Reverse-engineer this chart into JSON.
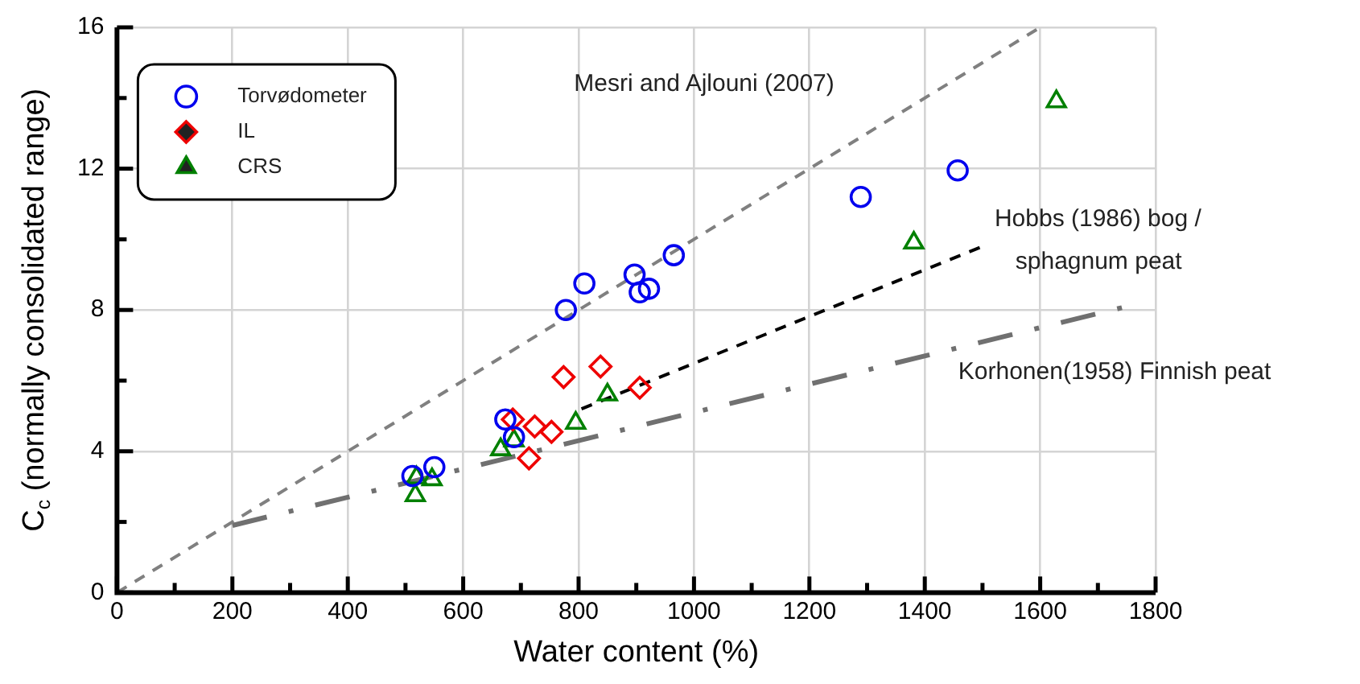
{
  "chart_data": {
    "type": "scatter",
    "xlabel": "Water content (%)",
    "ylabel": "C$_{c}$ (normally consolidated range)",
    "xlim": [
      0,
      1800
    ],
    "xticks": [
      0,
      {
        "value": 100,
        "label": null
      },
      200,
      {
        "value": 300,
        "label": null
      },
      400,
      {
        "value": 500,
        "label": null
      },
      600,
      {
        "value": 700,
        "label": null
      },
      800,
      {
        "value": 900,
        "label": null
      },
      1000,
      {
        "value": 1100,
        "label": null
      },
      1200,
      {
        "value": 1300,
        "label": null
      },
      1400,
      {
        "value": 1500,
        "label": null
      },
      1600,
      {
        "value": 1700,
        "label": null
      },
      1800
    ],
    "ylim": [
      0,
      16
    ],
    "yticks": [
      0,
      {
        "value": 2,
        "label": null
      },
      4,
      {
        "value": 6,
        "label": null
      },
      8,
      {
        "value": 10,
        "label": null
      },
      12,
      {
        "value": 14,
        "label": null
      },
      16
    ],
    "grid": true,
    "legend": "top left",
    "series": [
      {
        "name": "Torvødometer",
        "color": "#0000ee",
        "marker": "circle",
        "x": [
          512,
          550,
          673,
          688,
          778,
          810,
          897,
          906,
          922,
          965,
          1289,
          1457
        ],
        "values": [
          3.3,
          3.55,
          4.9,
          4.4,
          8.0,
          8.75,
          9.0,
          8.5,
          8.6,
          9.55,
          11.2,
          11.95
        ]
      },
      {
        "name": "IL",
        "color": "#ee0000",
        "marker": "diamond",
        "x": [
          686,
          724,
          753,
          714,
          774,
          838,
          906
        ],
        "values": [
          4.9,
          4.7,
          4.55,
          3.8,
          6.1,
          6.4,
          5.8
        ]
      },
      {
        "name": "CRS",
        "color": "#008000",
        "marker": "triangle",
        "x": [
          519,
          517,
          546,
          665,
          688,
          795,
          850,
          1381,
          1628
        ],
        "values": [
          3.25,
          2.75,
          3.2,
          4.05,
          4.3,
          4.8,
          5.6,
          9.9,
          13.9
        ]
      },
      {
        "type": "line",
        "color": "#808080",
        "line_style": "dashed",
        "marker": "none",
        "x": [
          0,
          1600
        ],
        "values": [
          0,
          16
        ]
      },
      {
        "type": "line",
        "color": "#000000",
        "line_style": "dashed",
        "marker": "none",
        "x": [
          805,
          1500
        ],
        "values": [
          5.2,
          9.8
        ]
      },
      {
        "type": "line",
        "color": "#707070",
        "line_style": "dashdot",
        "marker": "none",
        "x": [
          200,
          1750
        ],
        "values": [
          1.9,
          8.1
        ]
      }
    ],
    "annotations": [
      "Mesri and Ajlouni (2007)",
      "Hobbs (1986) bog /",
      "sphagnum peat",
      "Korhonen(1958) Finnish peat"
    ]
  }
}
